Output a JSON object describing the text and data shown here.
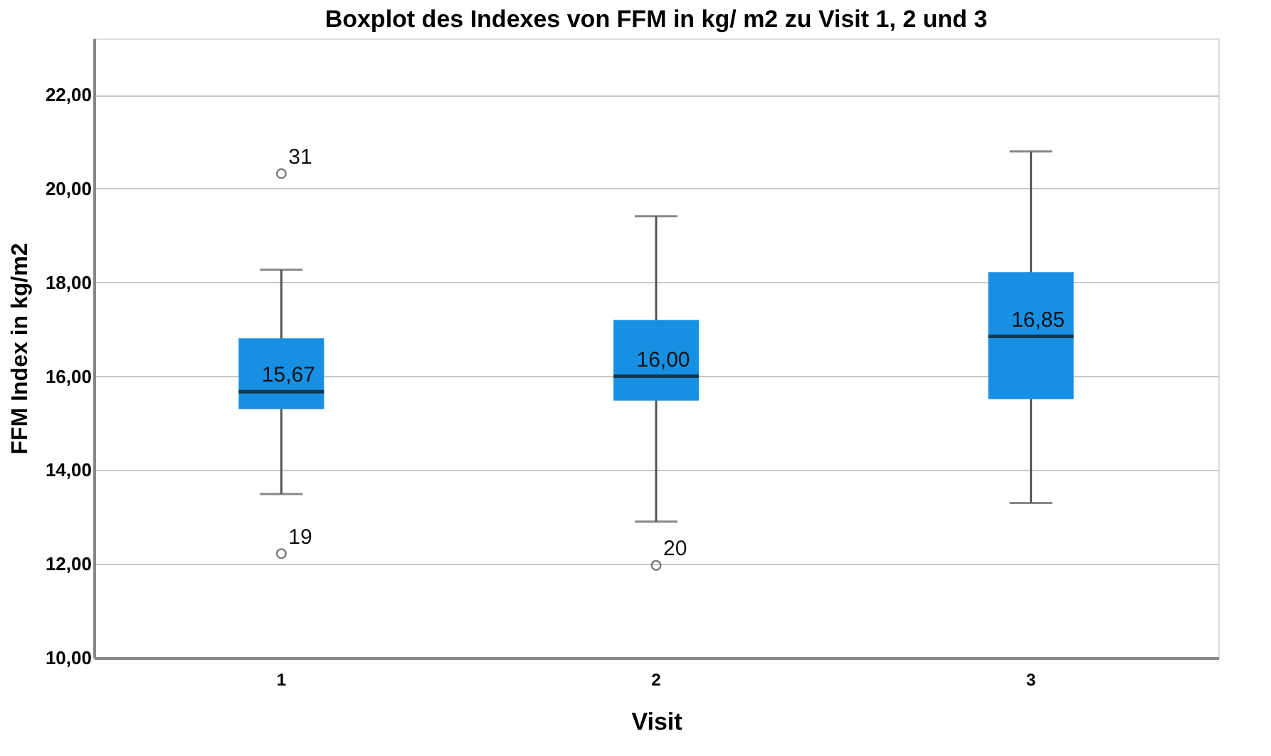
{
  "chart_data": {
    "type": "box",
    "title": "Boxplot des Indexes von FFM in kg/ m2 zu Visit 1, 2 und 3",
    "xlabel": "Visit",
    "ylabel": "FFM Index in kg/m2",
    "categories": [
      "1",
      "2",
      "3"
    ],
    "color": "#1790e3",
    "boxes": [
      {
        "low": 13.49,
        "q1": 15.3,
        "median": 15.67,
        "q3": 16.81,
        "high": 18.27,
        "outliers": [
          20.32,
          12.22
        ]
      },
      {
        "low": 12.9,
        "q1": 15.48,
        "median": 16.0,
        "q3": 17.2,
        "high": 19.41,
        "outliers": [
          11.97
        ]
      },
      {
        "low": 13.3,
        "q1": 15.51,
        "median": 16.85,
        "q3": 18.22,
        "high": 20.79
      }
    ],
    "value_labels": [
      "15,67",
      "16,00",
      "16,85"
    ],
    "annotations": [
      "31",
      "19",
      "20"
    ],
    "ylim": [
      10,
      23.2
    ],
    "yticks": [
      {
        "value": 10,
        "label": "10,00"
      },
      {
        "value": 12,
        "label": "12,00"
      },
      {
        "value": 14,
        "label": "14,00"
      },
      {
        "value": 16,
        "label": "16,00"
      },
      {
        "value": 18,
        "label": "18,00"
      },
      {
        "value": 20,
        "label": "20,00"
      },
      {
        "value": 22,
        "label": "22,00"
      }
    ],
    "grid": "y"
  }
}
